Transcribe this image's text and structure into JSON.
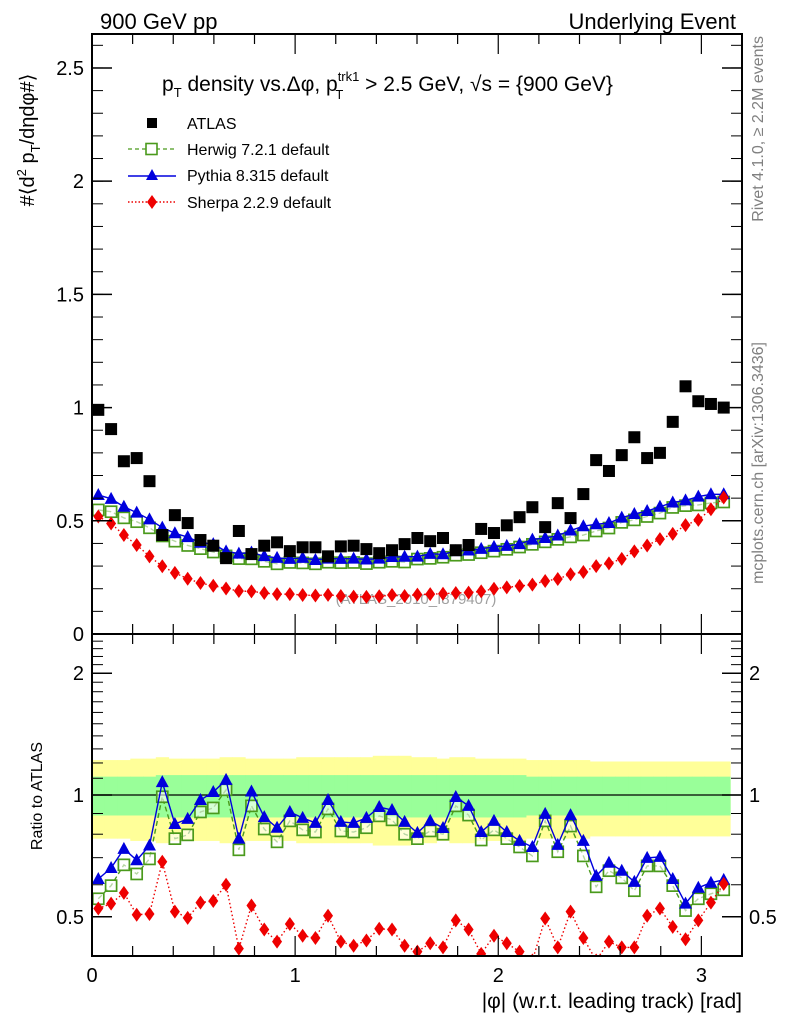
{
  "header": {
    "left_label": "900 GeV pp",
    "right_label": "Underlying Event"
  },
  "side_labels": {
    "rivet": "Rivet 4.1.0, ≥ 2.2M events",
    "mcplots": "mcplots.cern.ch [arXiv:1306.3436]"
  },
  "watermark": "(ATLAS_2010_I879407)",
  "chart_data": [
    {
      "type": "scatter",
      "panel": "main",
      "title_parts": {
        "pre": "p",
        "pre_sub": "T",
        "mid": " density vs.Δφ, p",
        "mid_sup": "trk1",
        "mid_sub": "T",
        "post": " > 2.5 GeV, √s = {900 GeV}"
      },
      "ylabel": "#⟨d² p_T /dηdφ#⟩",
      "ylabel_parts": {
        "a": "#⟨d",
        "sup": "2",
        "b": " p",
        "sub": "T",
        "c": "/dηdφ#⟩"
      },
      "xlim": [
        0,
        3.2
      ],
      "ylim": [
        0,
        2.65
      ],
      "yticks": [
        0,
        0.5,
        1,
        1.5,
        2,
        2.5
      ],
      "ytick_labels": [
        "0",
        "0.5",
        "1",
        "1.5",
        "2",
        "2.5"
      ],
      "legend_position": "top-left",
      "x": [
        0.031,
        0.094,
        0.157,
        0.22,
        0.283,
        0.346,
        0.408,
        0.471,
        0.534,
        0.597,
        0.66,
        0.723,
        0.785,
        0.848,
        0.911,
        0.974,
        1.037,
        1.1,
        1.162,
        1.225,
        1.288,
        1.351,
        1.414,
        1.477,
        1.539,
        1.602,
        1.665,
        1.728,
        1.791,
        1.854,
        1.916,
        1.979,
        2.042,
        2.105,
        2.168,
        2.231,
        2.293,
        2.356,
        2.419,
        2.482,
        2.545,
        2.608,
        2.67,
        2.733,
        2.796,
        2.859,
        2.922,
        2.985,
        3.047,
        3.11
      ],
      "series": [
        {
          "name": "ATLAS",
          "color": "#000000",
          "marker": "square-filled",
          "values": [
            0.99,
            0.905,
            0.763,
            0.777,
            0.675,
            0.437,
            0.525,
            0.49,
            0.415,
            0.39,
            0.335,
            0.455,
            0.353,
            0.39,
            0.405,
            0.366,
            0.383,
            0.383,
            0.343,
            0.387,
            0.39,
            0.375,
            0.357,
            0.37,
            0.397,
            0.424,
            0.41,
            0.424,
            0.37,
            0.393,
            0.464,
            0.446,
            0.48,
            0.516,
            0.56,
            0.472,
            0.578,
            0.512,
            0.618,
            0.768,
            0.72,
            0.79,
            0.869,
            0.777,
            0.8,
            0.937,
            1.094,
            1.028,
            1.016,
            1.0
          ]
        },
        {
          "name": "Herwig 7.2.1 default",
          "color": "#4a9a1c",
          "marker": "square-open",
          "line": "dashed",
          "values": [
            0.548,
            0.54,
            0.513,
            0.496,
            0.469,
            0.433,
            0.41,
            0.391,
            0.377,
            0.362,
            0.345,
            0.333,
            0.332,
            0.321,
            0.31,
            0.316,
            0.314,
            0.31,
            0.317,
            0.315,
            0.316,
            0.311,
            0.317,
            0.321,
            0.318,
            0.331,
            0.334,
            0.339,
            0.348,
            0.351,
            0.359,
            0.366,
            0.374,
            0.384,
            0.396,
            0.407,
            0.418,
            0.429,
            0.437,
            0.455,
            0.468,
            0.493,
            0.504,
            0.519,
            0.534,
            0.559,
            0.567,
            0.57,
            0.579,
            0.583
          ]
        },
        {
          "name": "Pythia 8.315 default",
          "color": "#0000dd",
          "marker": "triangle-filled",
          "line": "solid",
          "values": [
            0.614,
            0.597,
            0.562,
            0.536,
            0.506,
            0.47,
            0.445,
            0.428,
            0.403,
            0.397,
            0.365,
            0.355,
            0.36,
            0.344,
            0.336,
            0.332,
            0.336,
            0.327,
            0.333,
            0.332,
            0.333,
            0.329,
            0.333,
            0.34,
            0.341,
            0.342,
            0.354,
            0.352,
            0.366,
            0.369,
            0.376,
            0.385,
            0.389,
            0.397,
            0.417,
            0.424,
            0.435,
            0.457,
            0.476,
            0.485,
            0.49,
            0.514,
            0.53,
            0.543,
            0.562,
            0.581,
            0.59,
            0.607,
            0.617,
            0.617
          ]
        },
        {
          "name": "Sherpa 2.2.9 default",
          "color": "#ee0000",
          "marker": "diamond-filled",
          "line": "dotted",
          "values": [
            0.519,
            0.488,
            0.437,
            0.393,
            0.343,
            0.299,
            0.27,
            0.244,
            0.225,
            0.213,
            0.201,
            0.19,
            0.188,
            0.181,
            0.176,
            0.176,
            0.172,
            0.17,
            0.173,
            0.168,
            0.165,
            0.164,
            0.167,
            0.172,
            0.168,
            0.174,
            0.176,
            0.178,
            0.181,
            0.183,
            0.188,
            0.2,
            0.206,
            0.212,
            0.218,
            0.234,
            0.243,
            0.264,
            0.274,
            0.3,
            0.312,
            0.332,
            0.365,
            0.391,
            0.419,
            0.442,
            0.481,
            0.504,
            0.551,
            0.603
          ]
        }
      ]
    },
    {
      "type": "line",
      "panel": "ratio",
      "ylabel": "Ratio to ATLAS",
      "xlabel": "|φ| (w.r.t. leading track) [rad]",
      "xlim": [
        0,
        3.2
      ],
      "ylim": [
        0.4,
        2.5
      ],
      "yscale": "log",
      "xticks": [
        0,
        1,
        2,
        3
      ],
      "xtick_labels": [
        "0",
        "1",
        "2",
        "3"
      ],
      "yticks": [
        0.5,
        1,
        2
      ],
      "ytick_labels": [
        "0.5",
        "1",
        "2"
      ],
      "reference_line": 1,
      "bands": [
        {
          "name": "ATLAS 2-sigma",
          "color": "#ffff99",
          "rel_err": [
            0.22,
            0.22,
            0.22,
            0.23,
            0.23,
            0.24,
            0.23,
            0.23,
            0.23,
            0.23,
            0.24,
            0.24,
            0.23,
            0.23,
            0.23,
            0.23,
            0.24,
            0.24,
            0.24,
            0.24,
            0.24,
            0.24,
            0.25,
            0.25,
            0.25,
            0.24,
            0.24,
            0.23,
            0.24,
            0.24,
            0.23,
            0.23,
            0.23,
            0.23,
            0.22,
            0.22,
            0.22,
            0.22,
            0.22,
            0.21,
            0.21,
            0.21,
            0.21,
            0.21,
            0.21,
            0.21,
            0.21,
            0.21,
            0.21,
            0.21
          ]
        },
        {
          "name": "ATLAS 1-sigma",
          "color": "#99ff99",
          "rel_err": [
            0.11,
            0.11,
            0.11,
            0.11,
            0.11,
            0.12,
            0.12,
            0.12,
            0.12,
            0.12,
            0.12,
            0.12,
            0.12,
            0.12,
            0.12,
            0.12,
            0.12,
            0.12,
            0.12,
            0.12,
            0.12,
            0.12,
            0.12,
            0.12,
            0.12,
            0.12,
            0.12,
            0.12,
            0.12,
            0.12,
            0.12,
            0.12,
            0.12,
            0.12,
            0.11,
            0.11,
            0.11,
            0.11,
            0.11,
            0.11,
            0.11,
            0.11,
            0.11,
            0.11,
            0.11,
            0.11,
            0.11,
            0.11,
            0.11,
            0.11
          ]
        }
      ],
      "series": [
        {
          "name": "Herwig 7.2.1 default",
          "color": "#4a9a1c",
          "marker": "square-open",
          "line": "dashed",
          "values": [
            0.554,
            0.597,
            0.672,
            0.638,
            0.695,
            0.99,
            0.78,
            0.797,
            0.908,
            0.929,
            1.03,
            0.732,
            0.94,
            0.824,
            0.766,
            0.863,
            0.82,
            0.81,
            0.924,
            0.815,
            0.81,
            0.83,
            0.888,
            0.868,
            0.8,
            0.78,
            0.815,
            0.8,
            0.94,
            0.892,
            0.774,
            0.82,
            0.78,
            0.744,
            0.707,
            0.863,
            0.724,
            0.838,
            0.707,
            0.593,
            0.65,
            0.624,
            0.58,
            0.668,
            0.668,
            0.597,
            0.518,
            0.554,
            0.57,
            0.583
          ]
        },
        {
          "name": "Pythia 8.315 default",
          "color": "#0000dd",
          "marker": "triangle-filled",
          "line": "solid",
          "values": [
            0.62,
            0.66,
            0.736,
            0.69,
            0.75,
            1.076,
            0.848,
            0.873,
            0.972,
            1.017,
            1.09,
            0.78,
            1.02,
            0.882,
            0.83,
            0.908,
            0.878,
            0.853,
            0.972,
            0.858,
            0.853,
            0.878,
            0.934,
            0.918,
            0.858,
            0.806,
            0.863,
            0.829,
            0.989,
            0.94,
            0.81,
            0.863,
            0.81,
            0.77,
            0.744,
            0.898,
            0.753,
            0.892,
            0.77,
            0.631,
            0.68,
            0.65,
            0.61,
            0.699,
            0.703,
            0.62,
            0.539,
            0.59,
            0.607,
            0.617
          ]
        },
        {
          "name": "Sherpa 2.2.9 default",
          "color": "#ee0000",
          "marker": "diamond-filled",
          "line": "dotted",
          "values": [
            0.524,
            0.539,
            0.573,
            0.506,
            0.508,
            0.684,
            0.515,
            0.497,
            0.542,
            0.547,
            0.6,
            0.417,
            0.533,
            0.465,
            0.434,
            0.48,
            0.449,
            0.443,
            0.503,
            0.434,
            0.424,
            0.437,
            0.467,
            0.465,
            0.424,
            0.41,
            0.43,
            0.42,
            0.49,
            0.465,
            0.405,
            0.449,
            0.43,
            0.41,
            0.39,
            0.495,
            0.42,
            0.515,
            0.443,
            0.39,
            0.434,
            0.42,
            0.42,
            0.503,
            0.524,
            0.472,
            0.44,
            0.49,
            0.542,
            0.603
          ]
        }
      ]
    }
  ]
}
